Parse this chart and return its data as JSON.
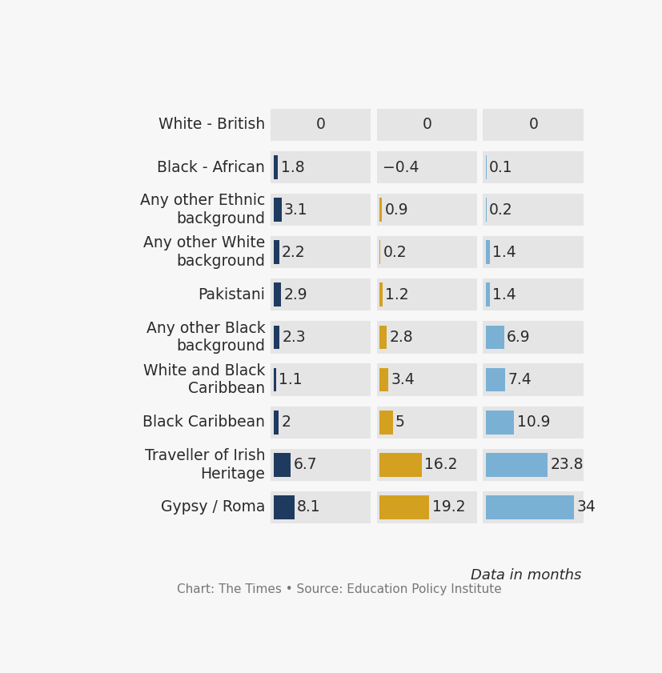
{
  "categories": [
    "White - British",
    "Black - African",
    "Any other Ethnic\nbackground",
    "Any other White\nbackground",
    "Pakistani",
    "Any other Black\nbackground",
    "White and Black\nCaribbean",
    "Black Caribbean",
    "Traveller of Irish\nHeritage",
    "Gypsy / Roma"
  ],
  "col1_values": [
    0,
    1.8,
    3.1,
    2.2,
    2.9,
    2.3,
    1.1,
    2.0,
    6.7,
    8.1
  ],
  "col2_values": [
    0,
    -0.4,
    0.9,
    0.2,
    1.2,
    2.8,
    3.4,
    5.0,
    16.2,
    19.2
  ],
  "col3_values": [
    0,
    0.1,
    0.2,
    1.4,
    1.4,
    6.9,
    7.4,
    10.9,
    23.8,
    34.0
  ],
  "col1_labels": [
    "0",
    "1.8",
    "3.1",
    "2.2",
    "2.9",
    "2.3",
    "1.1",
    "2",
    "6.7",
    "8.1"
  ],
  "col2_labels": [
    "0",
    "−0.4",
    "0.9",
    "0.2",
    "1.2",
    "2.8",
    "3.4",
    "5",
    "16.2",
    "19.2"
  ],
  "col3_labels": [
    "0",
    "0.1",
    "0.2",
    "1.4",
    "1.4",
    "6.9",
    "7.4",
    "10.9",
    "23.8",
    "34"
  ],
  "col1_color": "#1e3a5f",
  "col2_color": "#d4a020",
  "col3_color": "#7ab0d4",
  "cell_bg_color": "#e5e5e5",
  "page_bg_color": "#f7f7f7",
  "label_color": "#2a2a2a",
  "footer_text": "Chart: The Times • Source: Education Policy Institute",
  "data_label": "Data in months",
  "max_val": 34.0,
  "label_fontsize": 13.5,
  "category_fontsize": 13.5,
  "footer_fontsize": 11,
  "data_label_fontsize": 13
}
